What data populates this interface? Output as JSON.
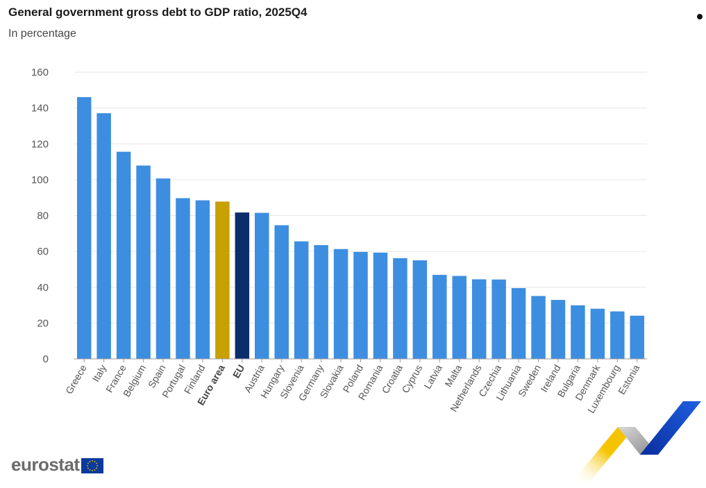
{
  "chart_data": {
    "type": "bar",
    "title": "General government gross debt to GDP ratio, 2025Q4",
    "subtitle": "In percentage",
    "categories": [
      "Greece",
      "Italy",
      "France",
      "Belgium",
      "Spain",
      "Portugal",
      "Finland",
      "Euro area",
      "EU",
      "Austria",
      "Hungary",
      "Slovenia",
      "Germany",
      "Slovakia",
      "Poland",
      "Romania",
      "Croatia",
      "Cyprus",
      "Latvia",
      "Malta",
      "Netherlands",
      "Czechia",
      "Lithuania",
      "Sweden",
      "Ireland",
      "Bulgaria",
      "Denmark",
      "Luxembourg",
      "Estonia"
    ],
    "values": [
      146.1,
      137.1,
      115.6,
      107.9,
      100.7,
      89.7,
      88.5,
      87.8,
      81.7,
      81.5,
      74.6,
      65.6,
      63.5,
      61.3,
      59.7,
      59.3,
      56.2,
      55.0,
      46.9,
      46.3,
      44.4,
      44.3,
      39.5,
      35.1,
      32.9,
      29.9,
      28.0,
      26.5,
      24.1
    ],
    "highlight": {
      "Euro area": "#c8a000",
      "EU": "#0c2d6b"
    },
    "bold_categories": [
      "Euro area",
      "EU"
    ],
    "bar_color": "#3d8ee0",
    "ylim": [
      0,
      160
    ],
    "yticks": [
      0,
      20,
      40,
      60,
      80,
      100,
      120,
      140,
      160
    ],
    "xlabel": "",
    "ylabel": "",
    "grid": true,
    "legend": "none"
  },
  "branding": {
    "wordmark": "eurostat",
    "flag_color": "#0b3a9c",
    "star_color": "#f2c500"
  },
  "colors": {
    "grid": "#e6e6e6",
    "axis": "#999999",
    "chevron_yellow": "#f5c400",
    "chevron_blue": "#1747c9",
    "chevron_grey": "#b8b8b8"
  }
}
